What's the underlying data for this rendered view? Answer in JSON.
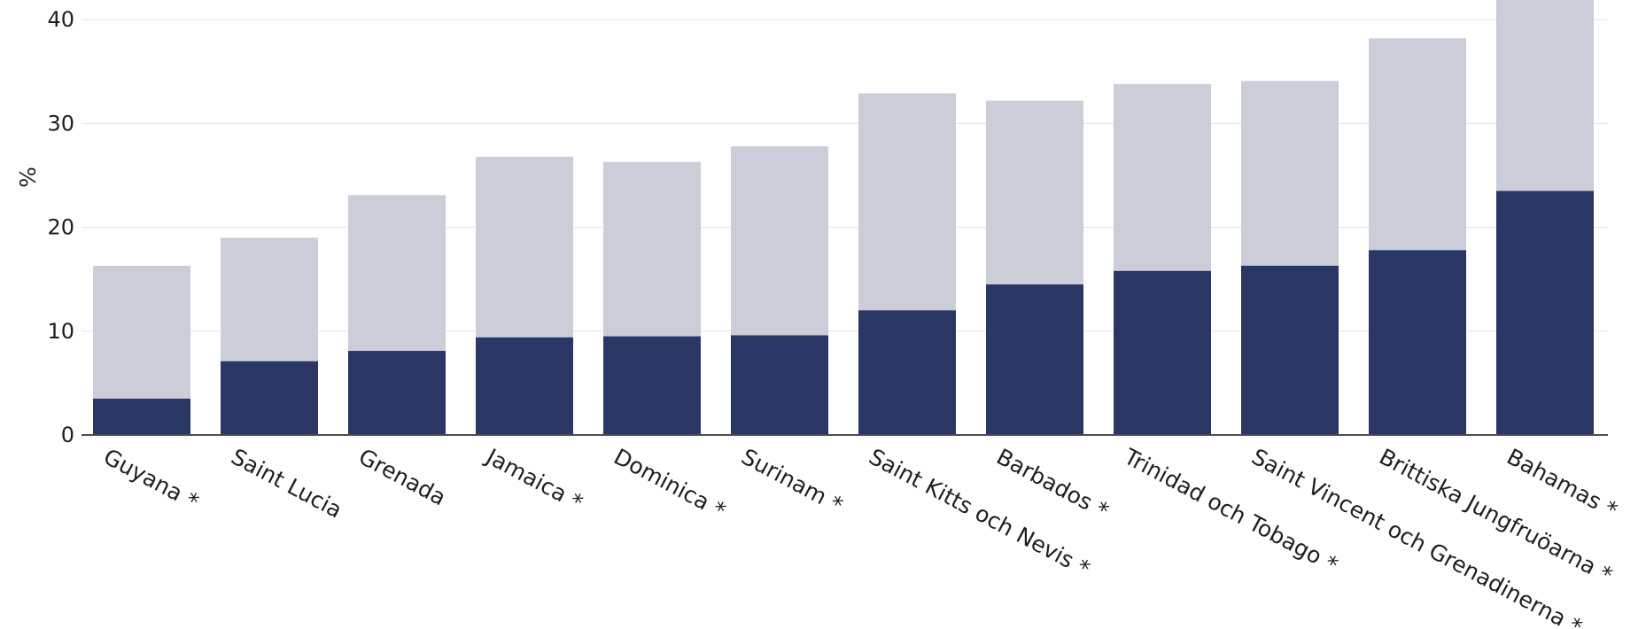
{
  "chart_data": {
    "type": "bar",
    "stacked": false,
    "title": "",
    "xlabel": "",
    "ylabel": "%",
    "ylim": [
      0,
      42
    ],
    "yticks": [
      0,
      10,
      20,
      30,
      40
    ],
    "grid": true,
    "categories": [
      "Guyana *",
      "Saint Lucia",
      "Grenada",
      "Jamaica *",
      "Dominica *",
      "Surinam *",
      "Saint Kitts och Nevis *",
      "Barbados *",
      "Trinidad och Tobago *",
      "Saint Vincent och Grenadinerna *",
      "Brittiska Jungfruöarna *",
      "Bahamas *"
    ],
    "series": [
      {
        "color": "#cbcdd9",
        "values": [
          16.3,
          19.0,
          23.1,
          26.8,
          26.3,
          27.8,
          32.9,
          32.2,
          33.8,
          34.1,
          38.2,
          42.5
        ]
      },
      {
        "color": "#2a3663",
        "values": [
          3.5,
          7.1,
          8.1,
          9.4,
          9.5,
          9.6,
          12.0,
          14.5,
          15.8,
          16.3,
          17.8,
          23.5
        ]
      }
    ]
  }
}
